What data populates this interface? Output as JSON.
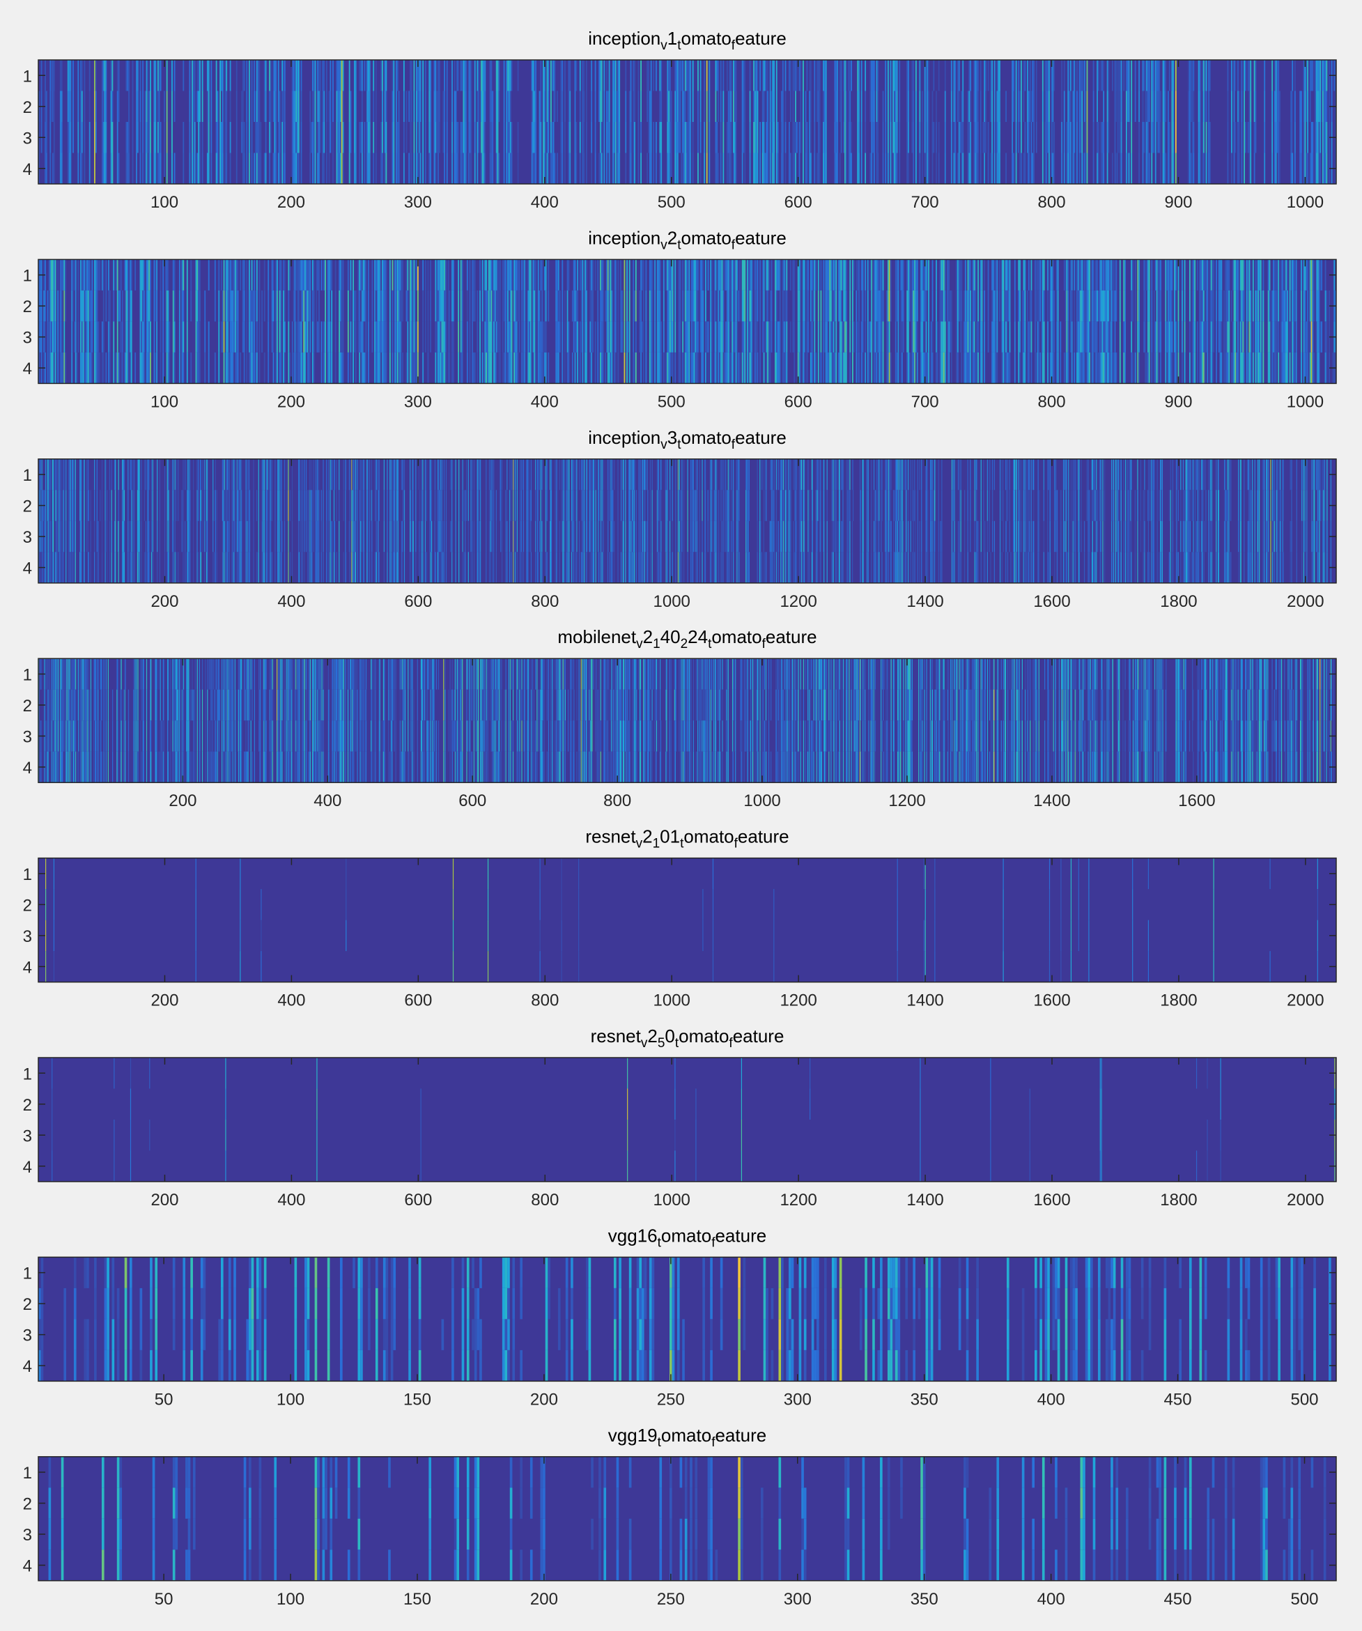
{
  "figure": {
    "colors": {
      "background": "#f0f0f0",
      "low": "#3e3897",
      "mid1": "#2a6fd8",
      "mid2": "#1fa8da",
      "mid3": "#34c2b4",
      "high": "#a9c740",
      "peak": "#f2c43a"
    }
  },
  "chart_data": [
    {
      "type": "heatmap",
      "title": "inception_v1_tomato_feature",
      "title_parts": [
        {
          "t": "inception"
        },
        {
          "t": "v",
          "sub": true
        },
        {
          "t": "1"
        },
        {
          "t": "t",
          "sub": true
        },
        {
          "t": "omato"
        },
        {
          "t": "f",
          "sub": true
        },
        {
          "t": "eature"
        }
      ],
      "rows": 4,
      "columns": 1024,
      "xlim": [
        0.5,
        1024.5
      ],
      "xticks": [
        100,
        200,
        300,
        400,
        500,
        600,
        700,
        800,
        900,
        1000
      ],
      "yticks": [
        1,
        2,
        3,
        4
      ],
      "density": 0.55,
      "intensity": 0.45,
      "seed": 11,
      "highlights": [
        {
          "col": 45,
          "v": 0.85
        },
        {
          "col": 240,
          "v": 0.8
        },
        {
          "col": 528,
          "v": 0.85
        },
        {
          "col": 828,
          "v": 0.75
        },
        {
          "col": 898,
          "v": 0.95
        },
        {
          "col": 102,
          "v": 0.7
        }
      ]
    },
    {
      "type": "heatmap",
      "title": "inception_v2_tomato_feature",
      "title_parts": [
        {
          "t": "inception"
        },
        {
          "t": "v",
          "sub": true
        },
        {
          "t": "2"
        },
        {
          "t": "t",
          "sub": true
        },
        {
          "t": "omato"
        },
        {
          "t": "f",
          "sub": true
        },
        {
          "t": "eature"
        }
      ],
      "rows": 4,
      "columns": 1024,
      "xlim": [
        0.5,
        1024.5
      ],
      "xticks": [
        100,
        200,
        300,
        400,
        500,
        600,
        700,
        800,
        900,
        1000
      ],
      "yticks": [
        1,
        2,
        3,
        4
      ],
      "density": 0.7,
      "intensity": 0.55,
      "seed": 23,
      "highlights": [
        {
          "col": 300,
          "v": 0.9
        },
        {
          "col": 1005,
          "v": 0.9
        },
        {
          "col": 463,
          "v": 0.8
        },
        {
          "col": 672,
          "v": 0.75
        },
        {
          "col": 147,
          "v": 0.7
        }
      ]
    },
    {
      "type": "heatmap",
      "title": "inception_v3_tomato_feature",
      "title_parts": [
        {
          "t": "inception"
        },
        {
          "t": "v",
          "sub": true
        },
        {
          "t": "3"
        },
        {
          "t": "t",
          "sub": true
        },
        {
          "t": "omato"
        },
        {
          "t": "f",
          "sub": true
        },
        {
          "t": "eature"
        }
      ],
      "rows": 4,
      "columns": 2048,
      "xlim": [
        0.5,
        2048.5
      ],
      "xticks": [
        200,
        400,
        600,
        800,
        1000,
        1200,
        1400,
        1600,
        1800,
        2000
      ],
      "yticks": [
        1,
        2,
        3,
        4
      ],
      "density": 0.4,
      "intensity": 0.4,
      "seed": 37,
      "highlights": [
        {
          "col": 395,
          "v": 0.8
        },
        {
          "col": 495,
          "v": 0.75
        },
        {
          "col": 750,
          "v": 0.8
        },
        {
          "col": 1945,
          "v": 0.7
        },
        {
          "col": 1010,
          "v": 0.65
        }
      ]
    },
    {
      "type": "heatmap",
      "title": "mobilenet_v2_140_224_tomato_feature",
      "title_parts": [
        {
          "t": "mobilenet"
        },
        {
          "t": "v",
          "sub": true
        },
        {
          "t": "2"
        },
        {
          "t": "1",
          "sub": true
        },
        {
          "t": "40"
        },
        {
          "t": "2",
          "sub": true
        },
        {
          "t": "24"
        },
        {
          "t": "t",
          "sub": true
        },
        {
          "t": "omato"
        },
        {
          "t": "f",
          "sub": true
        },
        {
          "t": "eature"
        }
      ],
      "rows": 4,
      "columns": 1792,
      "xlim": [
        0.5,
        1792.5
      ],
      "xticks": [
        200,
        400,
        600,
        800,
        1000,
        1200,
        1400,
        1600
      ],
      "yticks": [
        1,
        2,
        3,
        4
      ],
      "density": 0.55,
      "intensity": 0.5,
      "seed": 51,
      "highlights": [
        {
          "col": 1135,
          "v": 0.85
        },
        {
          "col": 750,
          "v": 0.8
        },
        {
          "col": 1320,
          "v": 0.8
        },
        {
          "col": 1770,
          "v": 0.85
        },
        {
          "col": 330,
          "v": 0.75
        },
        {
          "col": 560,
          "v": 0.7
        }
      ]
    },
    {
      "type": "heatmap",
      "title": "resnet_v2_101_tomato_feature",
      "title_parts": [
        {
          "t": "resnet"
        },
        {
          "t": "v",
          "sub": true
        },
        {
          "t": "2"
        },
        {
          "t": "1",
          "sub": true
        },
        {
          "t": "01"
        },
        {
          "t": "t",
          "sub": true
        },
        {
          "t": "omato"
        },
        {
          "t": "f",
          "sub": true
        },
        {
          "t": "eature"
        }
      ],
      "rows": 4,
      "columns": 2048,
      "xlim": [
        0.5,
        2048.5
      ],
      "xticks": [
        200,
        400,
        600,
        800,
        1000,
        1200,
        1400,
        1600,
        1800,
        2000
      ],
      "yticks": [
        1,
        2,
        3,
        4
      ],
      "density": 0.012,
      "intensity": 0.35,
      "seed": 67,
      "highlights": [
        {
          "col": 12,
          "v": 0.85
        },
        {
          "col": 655,
          "v": 0.7
        },
        {
          "col": 710,
          "v": 0.7
        },
        {
          "col": 1400,
          "v": 0.55
        },
        {
          "col": 1630,
          "v": 0.55
        },
        {
          "col": 1855,
          "v": 0.55
        }
      ]
    },
    {
      "type": "heatmap",
      "title": "resnet_v2_50_tomato_feature",
      "title_parts": [
        {
          "t": "resnet"
        },
        {
          "t": "v",
          "sub": true
        },
        {
          "t": "2"
        },
        {
          "t": "5",
          "sub": true
        },
        {
          "t": "0"
        },
        {
          "t": "t",
          "sub": true
        },
        {
          "t": "omato"
        },
        {
          "t": "f",
          "sub": true
        },
        {
          "t": "eature"
        }
      ],
      "rows": 4,
      "columns": 2048,
      "xlim": [
        0.5,
        2048.5
      ],
      "xticks": [
        200,
        400,
        600,
        800,
        1000,
        1200,
        1400,
        1600,
        1800,
        2000
      ],
      "yticks": [
        1,
        2,
        3,
        4
      ],
      "density": 0.012,
      "intensity": 0.35,
      "seed": 79,
      "highlights": [
        {
          "col": 930,
          "v": 0.8
        },
        {
          "col": 2046,
          "v": 0.7
        },
        {
          "col": 440,
          "v": 0.55
        },
        {
          "col": 1110,
          "v": 0.55
        }
      ]
    },
    {
      "type": "heatmap",
      "title": "vgg16_tomato_feature",
      "title_parts": [
        {
          "t": "vgg16"
        },
        {
          "t": "t",
          "sub": true
        },
        {
          "t": "omato"
        },
        {
          "t": "f",
          "sub": true
        },
        {
          "t": "eature"
        }
      ],
      "rows": 4,
      "columns": 512,
      "xlim": [
        0.5,
        512.5
      ],
      "xticks": [
        50,
        100,
        150,
        200,
        250,
        300,
        350,
        400,
        450,
        500
      ],
      "yticks": [
        1,
        2,
        3,
        4
      ],
      "density": 0.3,
      "intensity": 0.5,
      "seed": 91,
      "highlights": [
        {
          "col": 277,
          "v": 0.92
        },
        {
          "col": 293,
          "v": 0.9
        },
        {
          "col": 317,
          "v": 0.85
        },
        {
          "col": 250,
          "v": 0.75
        },
        {
          "col": 110,
          "v": 0.7
        },
        {
          "col": 35,
          "v": 0.65
        }
      ]
    },
    {
      "type": "heatmap",
      "title": "vgg19_tomato_feature",
      "title_parts": [
        {
          "t": "vgg19"
        },
        {
          "t": "t",
          "sub": true
        },
        {
          "t": "omato"
        },
        {
          "t": "f",
          "sub": true
        },
        {
          "t": "eature"
        }
      ],
      "rows": 4,
      "columns": 512,
      "xlim": [
        0.5,
        512.5
      ],
      "xticks": [
        50,
        100,
        150,
        200,
        250,
        300,
        350,
        400,
        450,
        500
      ],
      "yticks": [
        1,
        2,
        3,
        4
      ],
      "density": 0.2,
      "intensity": 0.45,
      "seed": 103,
      "highlights": [
        {
          "col": 277,
          "v": 0.92
        },
        {
          "col": 110,
          "v": 0.7
        },
        {
          "col": 412,
          "v": 0.65
        },
        {
          "col": 26,
          "v": 0.6
        },
        {
          "col": 349,
          "v": 0.6
        }
      ]
    }
  ]
}
